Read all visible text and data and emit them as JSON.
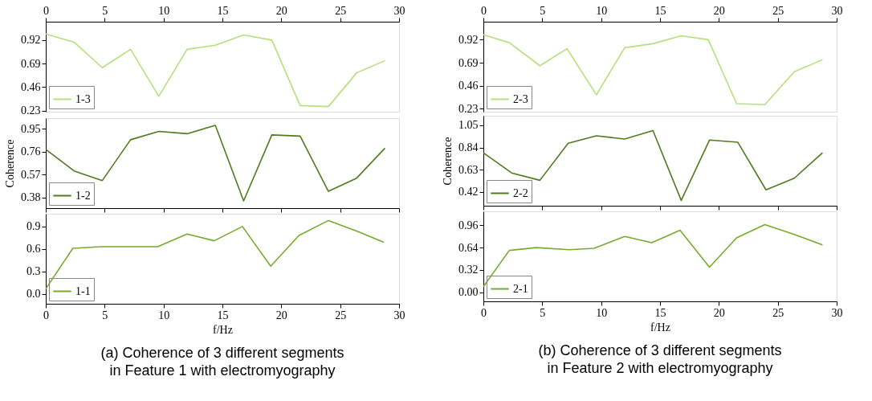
{
  "chart_data": [
    {
      "type": "line",
      "xlim": [
        0,
        30
      ],
      "xticks": [
        0,
        5,
        10,
        15,
        20,
        25,
        30
      ],
      "ylim": [
        0.22,
        1.1
      ],
      "yticks": [
        0.23,
        0.46,
        0.69,
        0.92
      ],
      "legend": "bottom left",
      "grid": false,
      "series": [
        {
          "name": "1-3",
          "color": "#b5e07a",
          "x": [
            0,
            2.4,
            4.8,
            7.2,
            9.6,
            12,
            14.4,
            16.8,
            19.2,
            21.6,
            24,
            26.4,
            28.8
          ],
          "values": [
            0.98,
            0.9,
            0.65,
            0.83,
            0.37,
            0.83,
            0.87,
            0.97,
            0.92,
            0.28,
            0.27,
            0.6,
            0.72
          ]
        }
      ]
    },
    {
      "type": "line",
      "xlim": [
        0,
        30
      ],
      "xticks": [
        0,
        5,
        10,
        15,
        20,
        25,
        30
      ],
      "ylim": [
        0.29,
        1.04
      ],
      "yticks": [
        0.38,
        0.57,
        0.76,
        0.95
      ],
      "ylabel": "Coherence",
      "tick_labels": "y",
      "legend": "bottom left",
      "grid": false,
      "series": [
        {
          "name": "1-2",
          "color": "#4f7a1e",
          "x": [
            0,
            2.4,
            4.8,
            7.2,
            9.6,
            12,
            14.4,
            16.8,
            19.2,
            21.6,
            24,
            26.4,
            28.8
          ],
          "values": [
            0.78,
            0.6,
            0.52,
            0.86,
            0.93,
            0.91,
            0.98,
            0.35,
            0.9,
            0.89,
            0.43,
            0.54,
            0.79
          ]
        }
      ]
    },
    {
      "type": "line",
      "xlim": [
        0,
        30
      ],
      "xticks": [
        0,
        5,
        10,
        15,
        20,
        25,
        30
      ],
      "ylim": [
        -0.13,
        1.07
      ],
      "yticks": [
        {
          "value": 0,
          "label": "0.0"
        },
        0.3,
        0.6,
        0.9
      ],
      "xlabel": "f/Hz",
      "legend": "bottom left",
      "grid": false,
      "title": "(a) Coherence of 3 different segments\nin Feature 1 with electromyography",
      "series": [
        {
          "name": "1-1",
          "color": "#76ab2e",
          "x": [
            0,
            2.3,
            4.7,
            7.2,
            9.5,
            12,
            14.3,
            16.7,
            19.1,
            21.5,
            24,
            26.4,
            28.7
          ],
          "values": [
            0.07,
            0.61,
            0.63,
            0.63,
            0.63,
            0.8,
            0.71,
            0.9,
            0.37,
            0.78,
            0.98,
            0.84,
            0.69
          ]
        }
      ]
    },
    {
      "type": "line",
      "xlim": [
        0,
        30
      ],
      "xticks": [
        0,
        5,
        10,
        15,
        20,
        25,
        30
      ],
      "ylim": [
        0.2,
        1.1
      ],
      "yticks": [
        0.23,
        0.46,
        0.69,
        0.92
      ],
      "legend": "bottom left",
      "grid": false,
      "series": [
        {
          "name": "2-3",
          "color": "#b5e07a",
          "x": [
            0,
            2.2,
            4.8,
            7.1,
            9.6,
            12,
            14.4,
            16.8,
            19.1,
            21.5,
            23.9,
            26.4,
            28.8
          ],
          "values": [
            0.97,
            0.89,
            0.66,
            0.83,
            0.37,
            0.84,
            0.88,
            0.96,
            0.92,
            0.28,
            0.27,
            0.6,
            0.72
          ]
        }
      ]
    },
    {
      "type": "line",
      "xlim": [
        0,
        30
      ],
      "xticks": [
        0,
        5,
        10,
        15,
        20,
        25,
        30
      ],
      "ylim": [
        0.29,
        1.14
      ],
      "yticks": [
        0.42,
        0.63,
        0.84,
        1.05
      ],
      "ylabel": "Coherence",
      "tick_labels": "y",
      "legend": "bottom left",
      "grid": false,
      "series": [
        {
          "name": "2-2",
          "color": "#4f7a1e",
          "x": [
            0,
            2.4,
            4.8,
            7.2,
            9.6,
            12,
            14.4,
            16.8,
            19.2,
            21.6,
            24,
            26.4,
            28.8
          ],
          "values": [
            0.79,
            0.6,
            0.53,
            0.88,
            0.95,
            0.92,
            1.0,
            0.34,
            0.91,
            0.89,
            0.44,
            0.55,
            0.79
          ]
        }
      ]
    },
    {
      "type": "line",
      "xlim": [
        0,
        30
      ],
      "xticks": [
        0,
        5,
        10,
        15,
        20,
        25,
        30
      ],
      "ylim": [
        -0.13,
        1.16
      ],
      "yticks": [
        {
          "value": 0,
          "label": "0.00"
        },
        0.32,
        0.64,
        0.96
      ],
      "xlabel": "f/Hz",
      "legend": "bottom left",
      "grid": false,
      "title": "(b) Coherence of 3 different segments\nin Feature 2 with electromyography",
      "series": [
        {
          "name": "2-1",
          "color": "#76ab2e",
          "x": [
            0,
            2.2,
            4.5,
            7.3,
            9.4,
            12,
            14.3,
            16.7,
            19.2,
            21.5,
            23.9,
            26.4,
            28.8
          ],
          "values": [
            0.08,
            0.6,
            0.64,
            0.61,
            0.63,
            0.8,
            0.71,
            0.89,
            0.36,
            0.78,
            0.97,
            0.83,
            0.68
          ]
        }
      ]
    }
  ]
}
